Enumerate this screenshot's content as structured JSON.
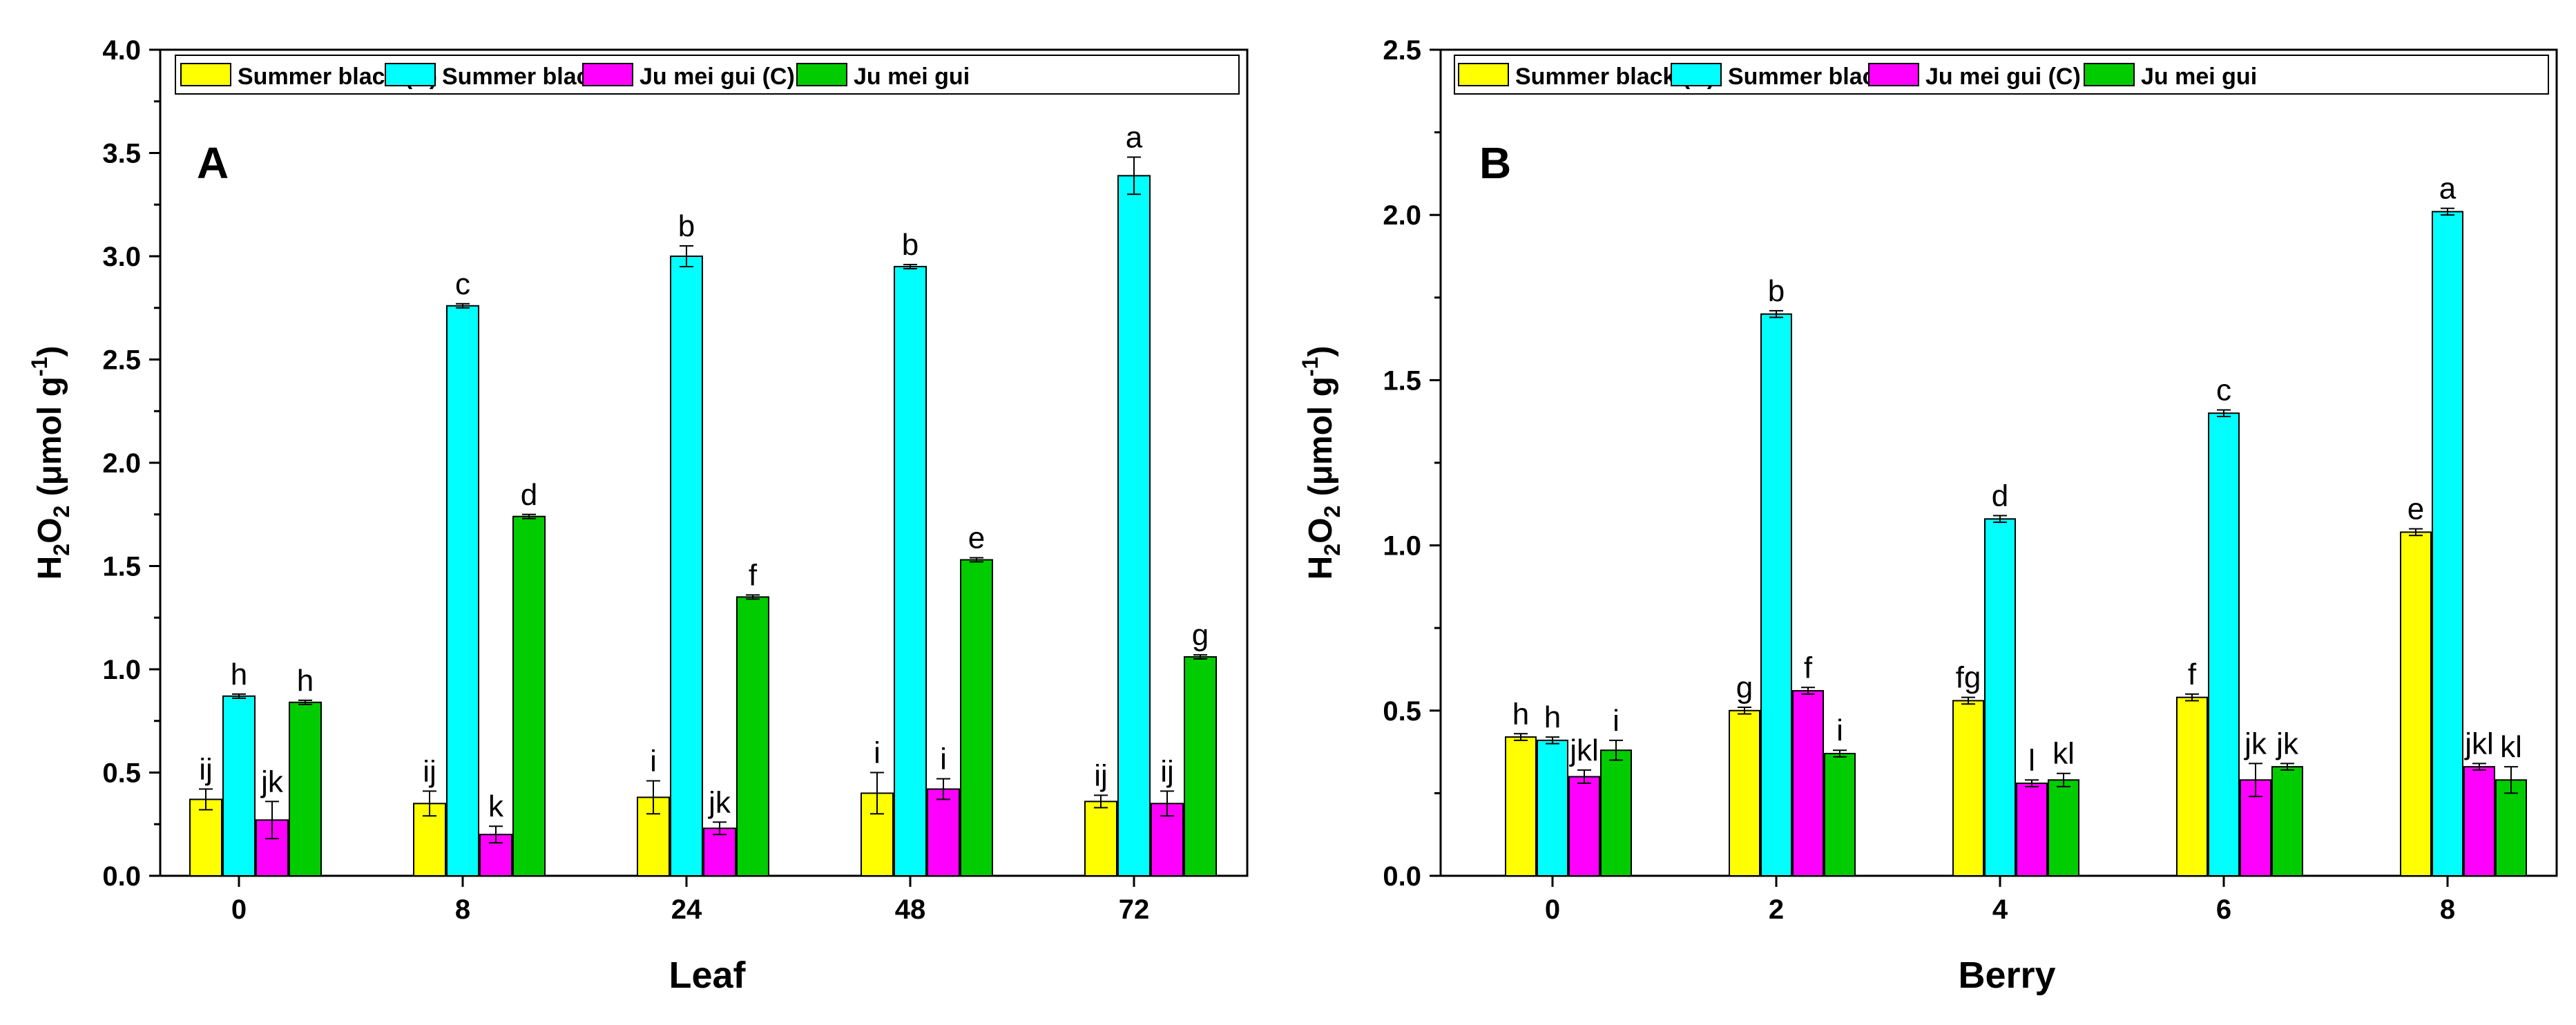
{
  "chart_data": [
    {
      "panel_label": "A",
      "type": "bar",
      "xlabel": "Leaf",
      "ylabel": {
        "main": "H",
        "sub1": "2",
        "mid": "O",
        "sub2": "2",
        "unit_open": " (μmol g",
        "unit_sup": "-1",
        "unit_close": ")"
      },
      "categories": [
        "0",
        "8",
        "24",
        "48",
        "72"
      ],
      "ylim": [
        0,
        4.0
      ],
      "yticks": [
        "0.0",
        "0.5",
        "1.0",
        "1.5",
        "2.0",
        "2.5",
        "3.0",
        "3.5",
        "4.0"
      ],
      "legend_position": "top",
      "series": [
        {
          "name": "Summer black (C)",
          "color": "#ffff00",
          "values": [
            0.37,
            0.35,
            0.38,
            0.4,
            0.36
          ],
          "errors": [
            0.05,
            0.06,
            0.08,
            0.1,
            0.03
          ],
          "letters": [
            "ij",
            "ij",
            "i",
            "i",
            "ij"
          ]
        },
        {
          "name": "Summer black",
          "color": "#00ffff",
          "values": [
            0.87,
            2.76,
            3.0,
            2.95,
            3.39
          ],
          "errors": [
            0.01,
            0.01,
            0.05,
            0.01,
            0.09
          ],
          "letters": [
            "h",
            "c",
            "b",
            "b",
            "a"
          ]
        },
        {
          "name": "Ju mei gui (C)",
          "color": "#ff00ff",
          "values": [
            0.27,
            0.2,
            0.23,
            0.42,
            0.35
          ],
          "errors": [
            0.09,
            0.04,
            0.03,
            0.05,
            0.06
          ],
          "letters": [
            "jk",
            "k",
            "jk",
            "i",
            "ij"
          ]
        },
        {
          "name": "Ju mei gui",
          "color": "#00cc00",
          "values": [
            0.84,
            1.74,
            1.35,
            1.53,
            1.06
          ],
          "errors": [
            0.01,
            0.01,
            0.01,
            0.01,
            0.01
          ],
          "letters": [
            "h",
            "d",
            "f",
            "e",
            "g"
          ]
        }
      ]
    },
    {
      "panel_label": "B",
      "type": "bar",
      "xlabel": "Berry",
      "ylabel": {
        "main": "H",
        "sub1": "2",
        "mid": "O",
        "sub2": "2",
        "unit_open": " (μmol g",
        "unit_sup": "-1",
        "unit_close": ")"
      },
      "categories": [
        "0",
        "2",
        "4",
        "6",
        "8"
      ],
      "ylim": [
        0,
        2.5
      ],
      "yticks": [
        "0.0",
        "0.5",
        "1.0",
        "1.5",
        "2.0",
        "2.5"
      ],
      "legend_position": "top",
      "series": [
        {
          "name": "Summer black (C)",
          "color": "#ffff00",
          "values": [
            0.42,
            0.5,
            0.53,
            0.54,
            1.04
          ],
          "errors": [
            0.01,
            0.01,
            0.01,
            0.01,
            0.01
          ],
          "letters": [
            "h",
            "g",
            "fg",
            "f",
            "e"
          ]
        },
        {
          "name": "Summer black",
          "color": "#00ffff",
          "values": [
            0.41,
            1.7,
            1.08,
            1.4,
            2.01
          ],
          "errors": [
            0.01,
            0.01,
            0.01,
            0.01,
            0.01
          ],
          "letters": [
            "h",
            "b",
            "d",
            "c",
            "a"
          ]
        },
        {
          "name": "Ju mei gui (C)",
          "color": "#ff00ff",
          "values": [
            0.3,
            0.56,
            0.28,
            0.29,
            0.33
          ],
          "errors": [
            0.02,
            0.01,
            0.01,
            0.05,
            0.01
          ],
          "letters": [
            "jkl",
            "f",
            "l",
            "jk",
            "jkl"
          ]
        },
        {
          "name": "Ju mei gui",
          "color": "#00cc00",
          "values": [
            0.38,
            0.37,
            0.29,
            0.33,
            0.29
          ],
          "errors": [
            0.03,
            0.01,
            0.02,
            0.01,
            0.04
          ],
          "letters": [
            "i",
            "i",
            "kl",
            "jk",
            "kl"
          ]
        }
      ]
    }
  ]
}
